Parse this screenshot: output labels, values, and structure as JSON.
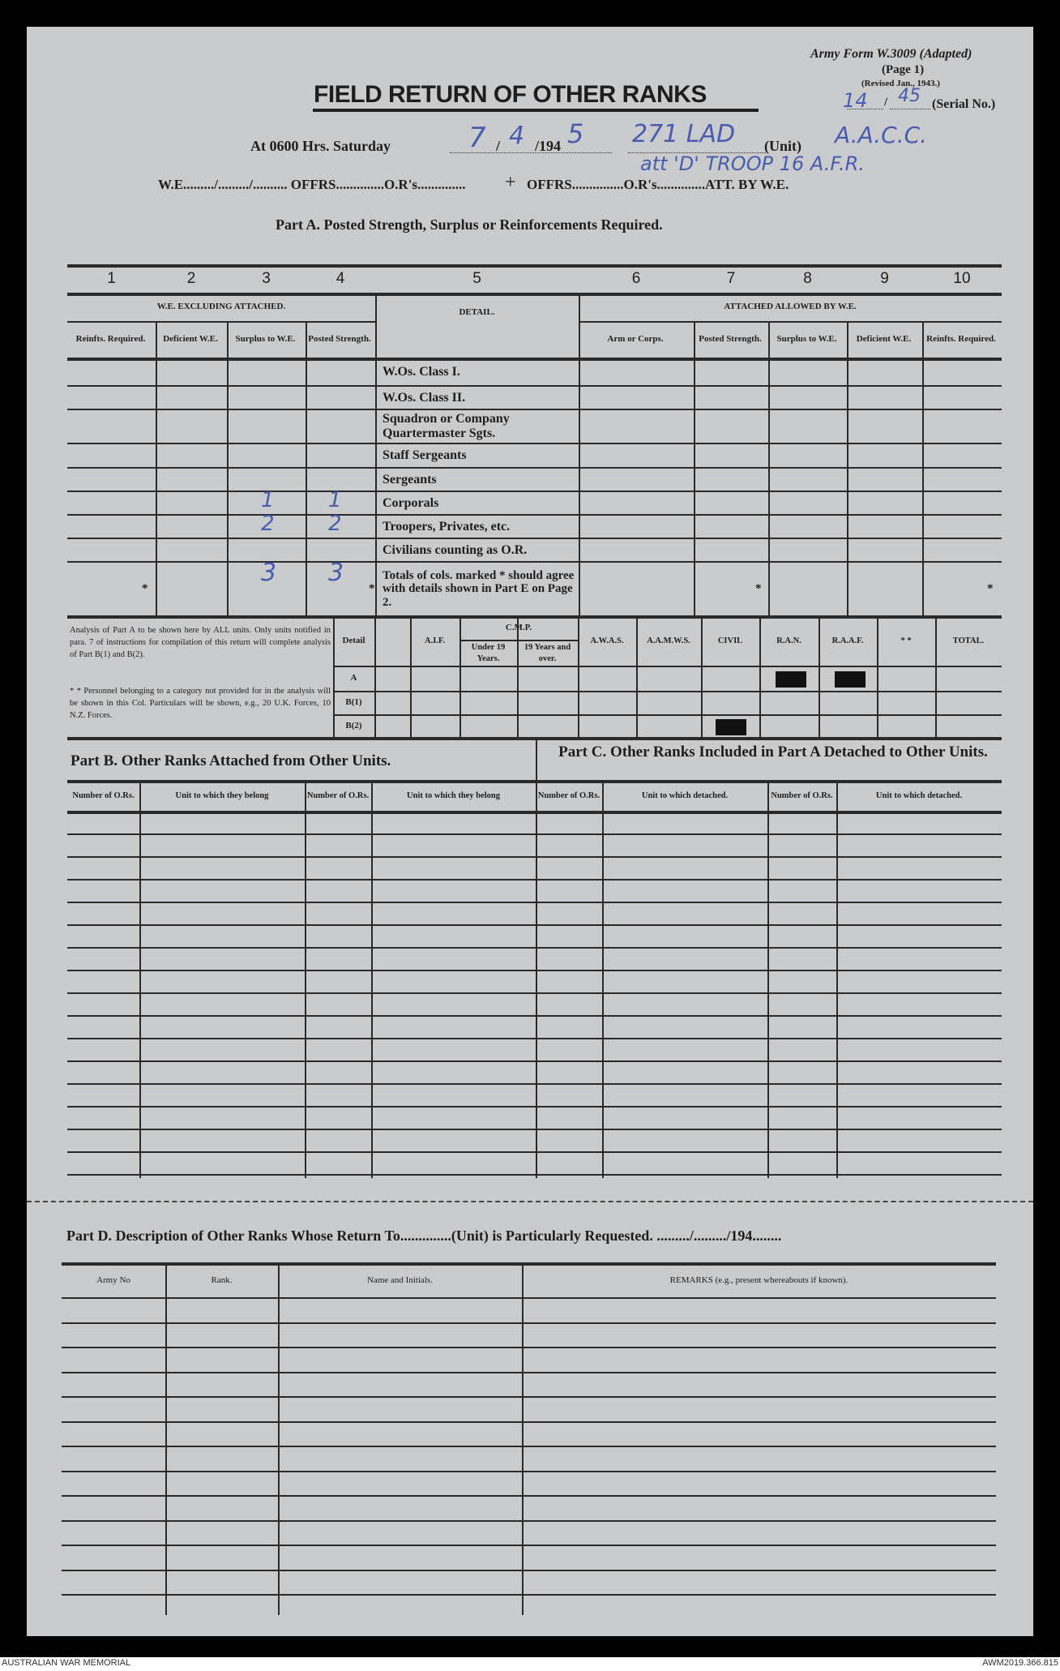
{
  "form": {
    "form_id": "Army Form W.3009",
    "form_adapted": "(Adapted)",
    "page": "(Page 1)",
    "revised": "(Revised Jan., 1943.)",
    "serial_label": "(Serial No.)",
    "serial_value_1": "14",
    "serial_value_2": "45",
    "title": "FIELD RETURN OF OTHER RANKS"
  },
  "header": {
    "at_label": "At 0600 Hrs. Saturday",
    "date_day": "7",
    "date_month": "4",
    "year_prefix": "/194",
    "year_suffix": "5",
    "unit_value": "271 LAD",
    "unit_label": "(Unit)",
    "unit_extra": "A.A.C.C.",
    "unit_line2": "att 'D' TROOP 16 A.F.R.",
    "we_line": "W.E........./........./..........  OFFRS..............O.R's..............",
    "plus": "+",
    "we_line2": "OFFRS...............O.R's..............ATT. BY W.E.",
    "part_a_title": "Part A.  Posted Strength, Surplus or Reinforcements Required."
  },
  "part_a": {
    "col_numbers": [
      "1",
      "2",
      "3",
      "4",
      "5",
      "6",
      "7",
      "8",
      "9",
      "10"
    ],
    "group_left": "W.E. EXCLUDING ATTACHED.",
    "group_right": "ATTACHED ALLOWED BY W.E.",
    "detail_header": "DETAIL.",
    "left_headers": [
      "Reinfts. Required.",
      "Deficient W.E.",
      "Surplus to W.E.",
      "Posted Strength."
    ],
    "right_headers": [
      "Arm or Corps.",
      "Posted Strength.",
      "Surplus to W.E.",
      "Deficient W.E.",
      "Reinfts. Required."
    ],
    "rows": [
      {
        "detail": "W.Os. Class I."
      },
      {
        "detail": "W.Os. Class II."
      },
      {
        "detail": "Squadron or Company Quartermaster Sgts."
      },
      {
        "detail": "Staff Sergeants"
      },
      {
        "detail": "Sergeants"
      },
      {
        "detail": "Corporals",
        "surplus": "1",
        "posted": "1"
      },
      {
        "detail": "Troopers, Privates, etc.",
        "surplus": "2",
        "posted": "2"
      },
      {
        "detail": "Civilians counting as O.R."
      },
      {
        "detail": "Totals of cols. marked * should agree with details shown in Part E on Page 2.",
        "surplus": "3",
        "posted": "3"
      }
    ],
    "asterisk": "*"
  },
  "analysis": {
    "note1": "Analysis of Part A to be shown here by ALL units. Only units notified in para. 7 of instructions for compilation of this return will complete analysis of Part B(1) and B(2).",
    "note2": "* * Personnel belonging to a category not provided for in the analysis will be shown in this Col. Particulars will be shown, e.g., 20 U.K. Forces, 10 N.Z. Forces.",
    "detail_label": "Detail",
    "cmp": "C.M.P.",
    "headers": [
      "",
      "A.I.F.",
      "Under 19 Years.",
      "19 Years and over.",
      "A.W.A.S.",
      "A.A.M.W.S.",
      "CIVIL",
      "R.A.N.",
      "R.A.A.F.",
      "* *",
      "TOTAL."
    ],
    "rows": [
      "A",
      "B(1)",
      "B(2)"
    ]
  },
  "part_b": {
    "title": "Part B.  Other Ranks Attached from Other Units.",
    "headers": [
      "Number of O.Rs.",
      "Unit to which they belong",
      "Number of O.Rs.",
      "Unit to which they belong"
    ]
  },
  "part_c": {
    "title": "Part C.  Other Ranks Included in Part A Detached to Other Units.",
    "headers": [
      "Number of O.Rs.",
      "Unit to which detached.",
      "Number of O.Rs.",
      "Unit to which detached."
    ]
  },
  "part_d": {
    "title": "Part D.  Description of Other Ranks Whose Return To..............(Unit) is Particularly Requested.  ........./........./194........",
    "headers": [
      "Army No",
      "Rank.",
      "Name and Initials.",
      "REMARKS (e.g., present whereabouts if known)."
    ]
  },
  "footer": {
    "left": "AUSTRALIAN WAR MEMORIAL",
    "right": "AWM2019.366.815"
  }
}
